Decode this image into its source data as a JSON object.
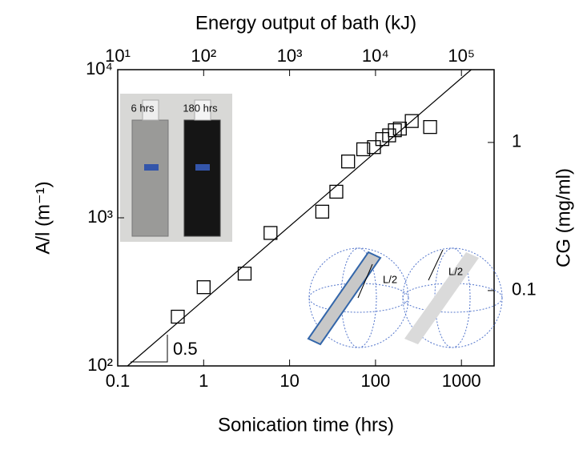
{
  "chart_data": {
    "type": "scatter",
    "title": "Energy output of bath (kJ)",
    "xlabel": "Sonication time (hrs)",
    "ylabel": "A/l (m⁻¹)",
    "y2label": "CG (mg/ml)",
    "xscale": "log",
    "yscale": "log",
    "xlim": [
      0.1,
      2400
    ],
    "ylim": [
      100,
      10000
    ],
    "x2lim": [
      10,
      240000
    ],
    "y2lim": [
      0.031,
      3.1
    ],
    "xticks": [
      0.1,
      1,
      10,
      100,
      1000
    ],
    "yticks": [
      {
        "value": 100,
        "label": "10²"
      },
      {
        "value": 1000,
        "label": "10³"
      },
      {
        "value": 10000,
        "label": "10⁴"
      }
    ],
    "x2ticks": [
      {
        "value": 10,
        "label": "10¹"
      },
      {
        "value": 100,
        "label": "10²"
      },
      {
        "value": 1000,
        "label": "10³"
      },
      {
        "value": 10000,
        "label": "10⁴"
      },
      {
        "value": 100000,
        "label": "10⁵"
      }
    ],
    "y2ticks": [
      0.1,
      1
    ],
    "marker_color": "#000000",
    "x": [
      0.5,
      1,
      3,
      6,
      24,
      35,
      48,
      72,
      96,
      120,
      144,
      168,
      192,
      264,
      432
    ],
    "values": [
      215,
      340,
      420,
      790,
      1100,
      1500,
      2400,
      2900,
      3000,
      3400,
      3600,
      3900,
      4000,
      4500,
      4100
    ],
    "fit_line": {
      "x": [
        0.13,
        1300
      ],
      "values": [
        100,
        10000
      ],
      "color": "#000000"
    },
    "slope_label": "0.5",
    "annotations": [
      "6 hrs",
      "180 hrs",
      "L/2",
      "L/2"
    ]
  }
}
